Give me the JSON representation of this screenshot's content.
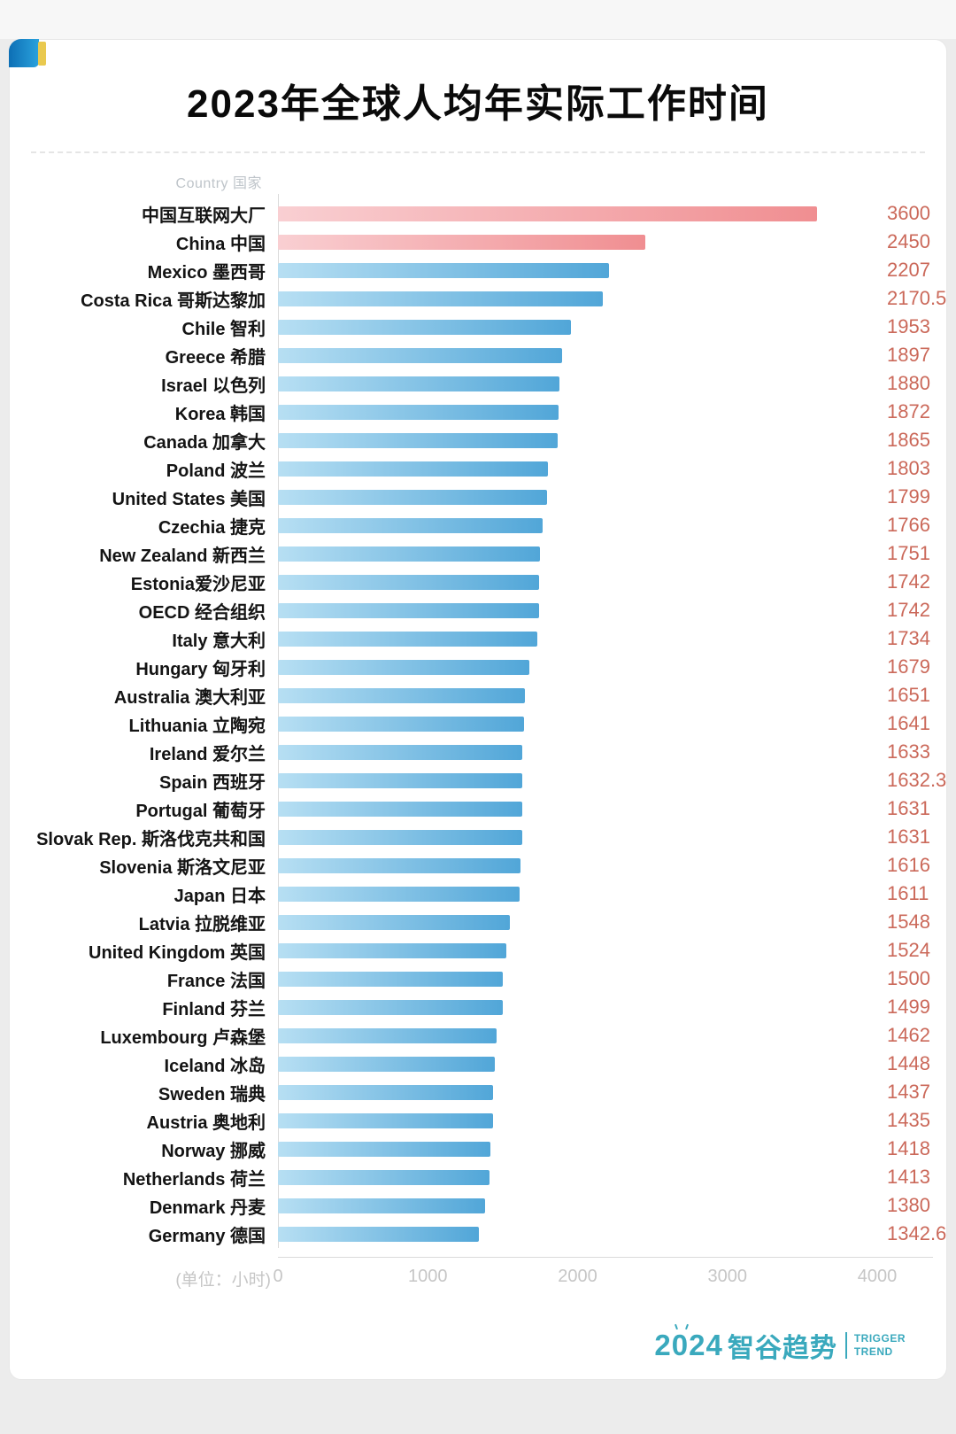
{
  "page": {
    "title": "2023年全球人均年实际工作时间",
    "column_header": "Country 国家",
    "unit_label": "(单位：小时)"
  },
  "chart_data": {
    "type": "bar",
    "orientation": "horizontal",
    "title": "2023年全球人均年实际工作时间",
    "unit": "小时",
    "xlim": [
      0,
      4000
    ],
    "x_ticks": [
      0,
      1000,
      2000,
      3000,
      4000
    ],
    "grid": false,
    "legend": "none",
    "bar_color": "#51a6d8",
    "highlight_bar_color": "#f08e91",
    "value_label_color": "#cb695a",
    "rows": [
      {
        "label": "中国互联网大厂",
        "value": 3600,
        "display": "3600",
        "highlight": true
      },
      {
        "label": "China 中国",
        "value": 2450,
        "display": "2450",
        "highlight": true
      },
      {
        "label": "Mexico 墨西哥",
        "value": 2207,
        "display": "2207",
        "highlight": false
      },
      {
        "label": "Costa Rica 哥斯达黎加",
        "value": 2170.5,
        "display": "2170.5",
        "highlight": false
      },
      {
        "label": "Chile 智利",
        "value": 1953,
        "display": "1953",
        "highlight": false
      },
      {
        "label": "Greece 希腊",
        "value": 1897,
        "display": "1897",
        "highlight": false
      },
      {
        "label": "Israel 以色列",
        "value": 1880,
        "display": "1880",
        "highlight": false
      },
      {
        "label": "Korea 韩国",
        "value": 1872,
        "display": "1872",
        "highlight": false
      },
      {
        "label": "Canada 加拿大",
        "value": 1865,
        "display": "1865",
        "highlight": false
      },
      {
        "label": "Poland 波兰",
        "value": 1803,
        "display": "1803",
        "highlight": false
      },
      {
        "label": "United States 美国",
        "value": 1799,
        "display": "1799",
        "highlight": false
      },
      {
        "label": "Czechia 捷克",
        "value": 1766,
        "display": "1766",
        "highlight": false
      },
      {
        "label": "New Zealand 新西兰",
        "value": 1751,
        "display": "1751",
        "highlight": false
      },
      {
        "label": "Estonia爱沙尼亚",
        "value": 1742,
        "display": "1742",
        "highlight": false
      },
      {
        "label": "OECD 经合组织",
        "value": 1742,
        "display": "1742",
        "highlight": false
      },
      {
        "label": "Italy 意大利",
        "value": 1734,
        "display": "1734",
        "highlight": false
      },
      {
        "label": "Hungary 匈牙利",
        "value": 1679,
        "display": "1679",
        "highlight": false
      },
      {
        "label": "Australia 澳大利亚",
        "value": 1651,
        "display": "1651",
        "highlight": false
      },
      {
        "label": "Lithuania 立陶宛",
        "value": 1641,
        "display": "1641",
        "highlight": false
      },
      {
        "label": "Ireland 爱尔兰",
        "value": 1633,
        "display": "1633",
        "highlight": false
      },
      {
        "label": "Spain 西班牙",
        "value": 1632.3,
        "display": "1632.3",
        "highlight": false
      },
      {
        "label": "Portugal 葡萄牙",
        "value": 1631,
        "display": "1631",
        "highlight": false
      },
      {
        "label": "Slovak Rep. 斯洛伐克共和国",
        "value": 1631,
        "display": "1631",
        "highlight": false
      },
      {
        "label": "Slovenia 斯洛文尼亚",
        "value": 1616,
        "display": "1616",
        "highlight": false
      },
      {
        "label": "Japan 日本",
        "value": 1611,
        "display": "1611",
        "highlight": false
      },
      {
        "label": "Latvia 拉脱维亚",
        "value": 1548,
        "display": "1548",
        "highlight": false
      },
      {
        "label": "United Kingdom 英国",
        "value": 1524,
        "display": "1524",
        "highlight": false
      },
      {
        "label": "France 法国",
        "value": 1500,
        "display": "1500",
        "highlight": false
      },
      {
        "label": "Finland 芬兰",
        "value": 1499,
        "display": "1499",
        "highlight": false
      },
      {
        "label": "Luxembourg 卢森堡",
        "value": 1462,
        "display": "1462",
        "highlight": false
      },
      {
        "label": "Iceland 冰岛",
        "value": 1448,
        "display": "1448",
        "highlight": false
      },
      {
        "label": "Sweden 瑞典",
        "value": 1437,
        "display": "1437",
        "highlight": false
      },
      {
        "label": "Austria 奥地利",
        "value": 1435,
        "display": "1435",
        "highlight": false
      },
      {
        "label": "Norway 挪威",
        "value": 1418,
        "display": "1418",
        "highlight": false
      },
      {
        "label": "Netherlands 荷兰",
        "value": 1413,
        "display": "1413",
        "highlight": false
      },
      {
        "label": "Denmark 丹麦",
        "value": 1380,
        "display": "1380",
        "highlight": false
      },
      {
        "label": "Germany 德国",
        "value": 1342.6,
        "display": "1342.6",
        "highlight": false
      }
    ]
  },
  "footer": {
    "logo_year": "2024",
    "logo_name": "智谷趋势",
    "logo_sub_line1": "TRIGGER",
    "logo_sub_line2": "TREND",
    "logo_color": "#3aa9bd"
  },
  "colors": {
    "page_background": "#ececec",
    "card_background": "#ffffff",
    "deco_blue": "#1a8bcc",
    "deco_yellow": "#e9c94f",
    "axis_line": "#dadada",
    "muted_text": "#c6c6c6"
  }
}
